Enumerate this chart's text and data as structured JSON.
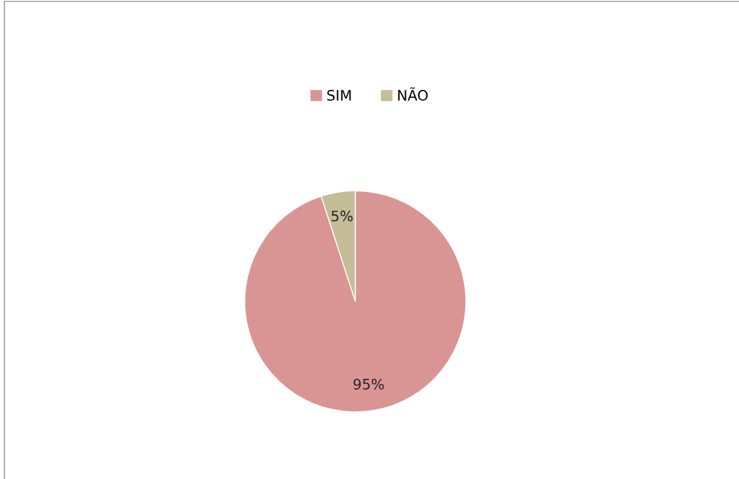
{
  "chart_data": {
    "type": "pie",
    "categories": [
      "SIM",
      "NÃO"
    ],
    "values": [
      95,
      5
    ],
    "colors": [
      "#d99594",
      "#c4bd97"
    ],
    "value_labels": [
      "95%",
      "5%"
    ],
    "legend": "top"
  }
}
